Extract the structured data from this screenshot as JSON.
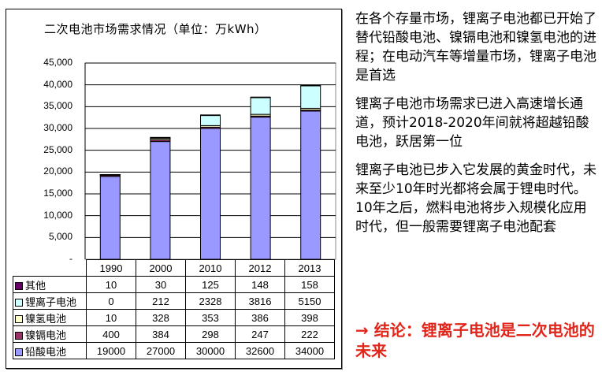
{
  "chart_data": {
    "type": "bar",
    "stacked": true,
    "title": "二次电池市场需求情况（单位：万kWh）",
    "categories": [
      "1990",
      "2000",
      "2010",
      "2012",
      "2013"
    ],
    "ylim": [
      0,
      45000
    ],
    "yticks": [
      "-",
      "5,000",
      "10,000",
      "15,000",
      "20,000",
      "25,000",
      "30,000",
      "35,000",
      "40,000",
      "45,000"
    ],
    "grid": true,
    "legend": "data-table",
    "series": [
      {
        "name": "铅酸电池",
        "color": "#9999ff",
        "values": [
          19000,
          27000,
          30000,
          32600,
          34000
        ]
      },
      {
        "name": "镍镉电池",
        "color": "#993366",
        "values": [
          400,
          384,
          298,
          247,
          222
        ]
      },
      {
        "name": "镍氢电池",
        "color": "#ffffcc",
        "values": [
          10,
          328,
          353,
          386,
          398
        ]
      },
      {
        "name": "锂离子电池",
        "color": "#ccffff",
        "values": [
          0,
          212,
          2328,
          3816,
          5150
        ]
      },
      {
        "name": "其他",
        "color": "#660066",
        "values": [
          10,
          30,
          125,
          148,
          158
        ]
      }
    ]
  },
  "right_text": {
    "paragraphs": [
      "在各个存量市场，锂离子电池都已开始了替代铅酸电池、镍镉电池和镍氢电池的进程；在电动汽车等增量市场，锂离子电池是首选",
      "锂离子电池市场需求已进入高速增长通道，预计2018-2020年间就将超越铅酸电池，跃居第一位",
      "锂离子电池已步入它发展的黄金时代，未来至少10年时光都将会属于锂电时代。10年之后，燃料电池将步入规模化应用时代，但一般需要锂离子电池配套"
    ],
    "conclusion": "→ 结论：锂离子电池是二次电池的未来",
    "conclusion_color": "#e0261b"
  }
}
